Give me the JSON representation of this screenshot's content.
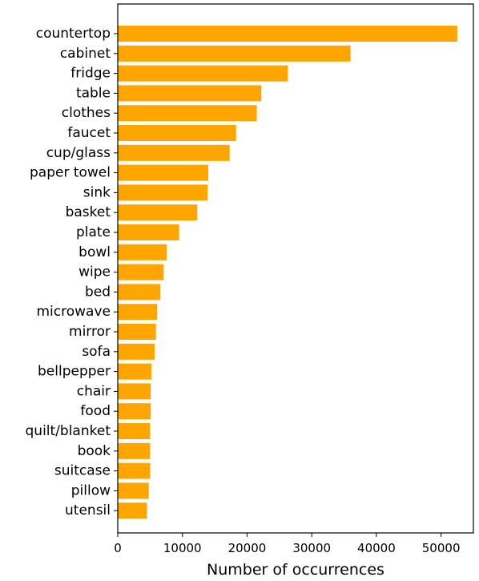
{
  "chart_data": {
    "type": "bar",
    "orientation": "horizontal",
    "title": "",
    "xlabel": "Number of occurrences",
    "ylabel": "",
    "xlim": [
      0,
      55000
    ],
    "xticks": [
      0,
      10000,
      20000,
      30000,
      40000,
      50000
    ],
    "xtick_labels": [
      "0",
      "10000",
      "20000",
      "30000",
      "40000",
      "50000"
    ],
    "grid": false,
    "legend": "none",
    "bar_color": "#FFA500",
    "categories": [
      "countertop",
      "cabinet",
      "fridge",
      "table",
      "clothes",
      "faucet",
      "cup/glass",
      "paper towel",
      "sink",
      "basket",
      "plate",
      "bowl",
      "wipe",
      "bed",
      "microwave",
      "mirror",
      "sofa",
      "bellpepper",
      "chair",
      "food",
      "quilt/blanket",
      "book",
      "suitcase",
      "pillow",
      "utensil"
    ],
    "values": [
      52500,
      36000,
      26300,
      22200,
      21500,
      18300,
      17300,
      14000,
      13900,
      12300,
      9500,
      7600,
      7100,
      6600,
      6100,
      5900,
      5700,
      5200,
      5100,
      5100,
      5000,
      5000,
      5000,
      4800,
      4500
    ]
  }
}
